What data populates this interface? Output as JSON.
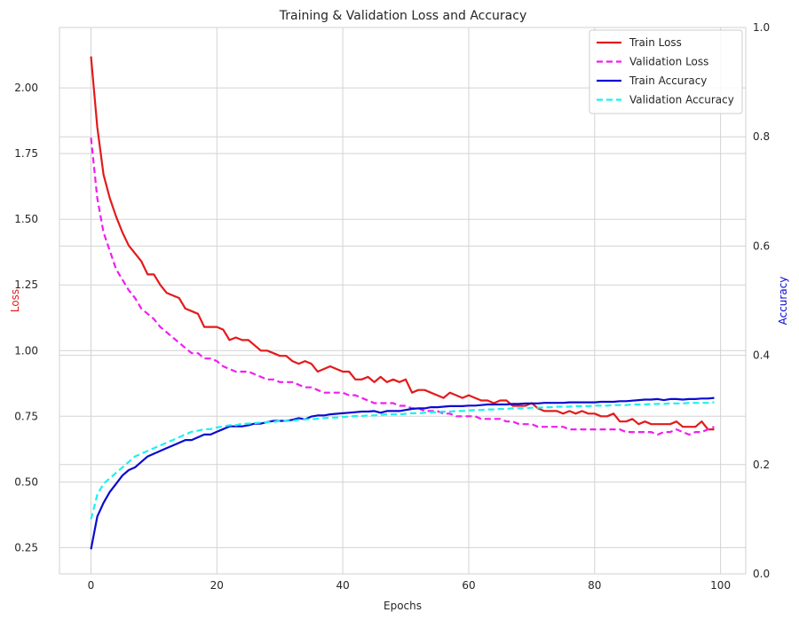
{
  "chart_data": {
    "type": "line",
    "title": "Training & Validation Loss and Accuracy",
    "xlabel": "Epochs",
    "ylabel_left": "Loss",
    "ylabel_right": "Accuracy",
    "xlim": [
      -5,
      104
    ],
    "ylim_left": [
      0.15,
      2.23
    ],
    "ylim_right": [
      0.0,
      1.0
    ],
    "x_ticks": [
      0,
      20,
      40,
      60,
      80,
      100
    ],
    "y_left_ticks": [
      0.25,
      0.5,
      0.75,
      1.0,
      1.25,
      1.5,
      1.75,
      2.0
    ],
    "y_left_tick_labels": [
      "0.25",
      "0.50",
      "0.75",
      "1.00",
      "1.25",
      "1.50",
      "1.75",
      "2.00"
    ],
    "y_right_ticks": [
      0.0,
      0.2,
      0.4,
      0.6,
      0.8,
      1.0
    ],
    "y_right_tick_labels": [
      "0.0",
      "0.2",
      "0.4",
      "0.6",
      "0.8",
      "1.0"
    ],
    "grid": true,
    "legend_position": "top-right",
    "colors": {
      "train_loss": "#e31a1c",
      "val_loss": "#f01ef0",
      "train_acc": "#0a0ad2",
      "val_acc": "#1ef0f0",
      "loss_axis": "#e31a1c",
      "acc_axis": "#0a0ad2"
    },
    "x": [
      0,
      1,
      2,
      3,
      4,
      5,
      6,
      7,
      8,
      9,
      10,
      11,
      12,
      13,
      14,
      15,
      16,
      17,
      18,
      19,
      20,
      21,
      22,
      23,
      24,
      25,
      26,
      27,
      28,
      29,
      30,
      31,
      32,
      33,
      34,
      35,
      36,
      37,
      38,
      39,
      40,
      41,
      42,
      43,
      44,
      45,
      46,
      47,
      48,
      49,
      50,
      51,
      52,
      53,
      54,
      55,
      56,
      57,
      58,
      59,
      60,
      61,
      62,
      63,
      64,
      65,
      66,
      67,
      68,
      69,
      70,
      71,
      72,
      73,
      74,
      75,
      76,
      77,
      78,
      79,
      80,
      81,
      82,
      83,
      84,
      85,
      86,
      87,
      88,
      89,
      90,
      91,
      92,
      93,
      94,
      95,
      96,
      97,
      98,
      99
    ],
    "series": [
      {
        "name": "Train Loss",
        "axis": "left",
        "style": "solid",
        "values": [
          2.12,
          1.85,
          1.67,
          1.58,
          1.51,
          1.45,
          1.4,
          1.37,
          1.34,
          1.29,
          1.29,
          1.25,
          1.22,
          1.21,
          1.2,
          1.16,
          1.15,
          1.14,
          1.09,
          1.09,
          1.09,
          1.08,
          1.04,
          1.05,
          1.04,
          1.04,
          1.02,
          1.0,
          1.0,
          0.99,
          0.98,
          0.98,
          0.96,
          0.95,
          0.96,
          0.95,
          0.92,
          0.93,
          0.94,
          0.93,
          0.92,
          0.92,
          0.89,
          0.89,
          0.9,
          0.88,
          0.9,
          0.88,
          0.89,
          0.88,
          0.89,
          0.84,
          0.85,
          0.85,
          0.84,
          0.83,
          0.82,
          0.84,
          0.83,
          0.82,
          0.83,
          0.82,
          0.81,
          0.81,
          0.8,
          0.81,
          0.81,
          0.79,
          0.79,
          0.79,
          0.8,
          0.78,
          0.77,
          0.77,
          0.77,
          0.76,
          0.77,
          0.76,
          0.77,
          0.76,
          0.76,
          0.75,
          0.75,
          0.76,
          0.73,
          0.73,
          0.74,
          0.72,
          0.73,
          0.72,
          0.72,
          0.72,
          0.72,
          0.73,
          0.71,
          0.71,
          0.71,
          0.73,
          0.7,
          0.7
        ]
      },
      {
        "name": "Validation Loss",
        "axis": "left",
        "style": "dashed",
        "values": [
          1.81,
          1.58,
          1.45,
          1.38,
          1.31,
          1.27,
          1.23,
          1.2,
          1.16,
          1.14,
          1.12,
          1.09,
          1.07,
          1.05,
          1.03,
          1.01,
          0.99,
          0.99,
          0.97,
          0.97,
          0.96,
          0.94,
          0.93,
          0.92,
          0.92,
          0.92,
          0.91,
          0.9,
          0.89,
          0.89,
          0.88,
          0.88,
          0.88,
          0.87,
          0.86,
          0.86,
          0.85,
          0.84,
          0.84,
          0.84,
          0.84,
          0.83,
          0.83,
          0.82,
          0.81,
          0.8,
          0.8,
          0.8,
          0.8,
          0.79,
          0.79,
          0.78,
          0.78,
          0.77,
          0.77,
          0.77,
          0.76,
          0.76,
          0.75,
          0.75,
          0.75,
          0.75,
          0.74,
          0.74,
          0.74,
          0.74,
          0.73,
          0.73,
          0.72,
          0.72,
          0.72,
          0.71,
          0.71,
          0.71,
          0.71,
          0.71,
          0.7,
          0.7,
          0.7,
          0.7,
          0.7,
          0.7,
          0.7,
          0.7,
          0.7,
          0.69,
          0.69,
          0.69,
          0.69,
          0.69,
          0.68,
          0.69,
          0.69,
          0.7,
          0.69,
          0.68,
          0.69,
          0.69,
          0.7,
          0.71
        ]
      },
      {
        "name": "Train Accuracy",
        "axis": "right",
        "style": "solid",
        "values": [
          0.045,
          0.105,
          0.13,
          0.15,
          0.165,
          0.18,
          0.19,
          0.195,
          0.205,
          0.215,
          0.22,
          0.225,
          0.23,
          0.235,
          0.24,
          0.245,
          0.245,
          0.25,
          0.255,
          0.255,
          0.26,
          0.265,
          0.27,
          0.27,
          0.27,
          0.272,
          0.275,
          0.275,
          0.278,
          0.28,
          0.28,
          0.28,
          0.282,
          0.285,
          0.283,
          0.288,
          0.29,
          0.29,
          0.292,
          0.293,
          0.294,
          0.295,
          0.296,
          0.297,
          0.297,
          0.298,
          0.295,
          0.298,
          0.298,
          0.298,
          0.3,
          0.302,
          0.303,
          0.303,
          0.305,
          0.305,
          0.306,
          0.307,
          0.307,
          0.307,
          0.308,
          0.308,
          0.309,
          0.31,
          0.31,
          0.31,
          0.31,
          0.311,
          0.311,
          0.312,
          0.312,
          0.312,
          0.313,
          0.313,
          0.313,
          0.313,
          0.314,
          0.314,
          0.314,
          0.314,
          0.314,
          0.315,
          0.315,
          0.315,
          0.316,
          0.316,
          0.317,
          0.318,
          0.319,
          0.319,
          0.32,
          0.318,
          0.32,
          0.32,
          0.319,
          0.32,
          0.32,
          0.321,
          0.321,
          0.322
        ]
      },
      {
        "name": "Validation Accuracy",
        "axis": "right",
        "style": "dashed",
        "values": [
          0.1,
          0.145,
          0.165,
          0.175,
          0.185,
          0.195,
          0.205,
          0.215,
          0.22,
          0.225,
          0.23,
          0.235,
          0.24,
          0.245,
          0.25,
          0.255,
          0.26,
          0.262,
          0.265,
          0.265,
          0.268,
          0.27,
          0.272,
          0.272,
          0.275,
          0.275,
          0.276,
          0.277,
          0.278,
          0.278,
          0.28,
          0.28,
          0.28,
          0.282,
          0.283,
          0.283,
          0.284,
          0.285,
          0.286,
          0.286,
          0.287,
          0.288,
          0.289,
          0.289,
          0.29,
          0.29,
          0.291,
          0.292,
          0.292,
          0.292,
          0.293,
          0.294,
          0.294,
          0.295,
          0.296,
          0.296,
          0.297,
          0.297,
          0.298,
          0.298,
          0.299,
          0.3,
          0.3,
          0.301,
          0.301,
          0.302,
          0.302,
          0.303,
          0.303,
          0.303,
          0.304,
          0.304,
          0.305,
          0.305,
          0.306,
          0.306,
          0.306,
          0.307,
          0.307,
          0.307,
          0.308,
          0.308,
          0.308,
          0.309,
          0.309,
          0.309,
          0.31,
          0.31,
          0.31,
          0.311,
          0.311,
          0.311,
          0.312,
          0.312,
          0.312,
          0.313,
          0.313,
          0.313,
          0.313,
          0.314
        ]
      }
    ]
  }
}
